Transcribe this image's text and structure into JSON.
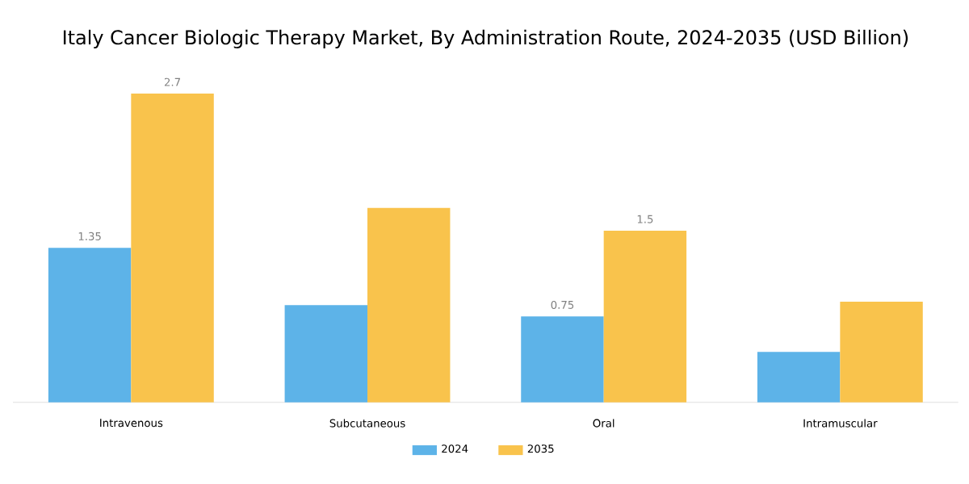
{
  "chart_data": {
    "type": "bar",
    "title": "Italy Cancer Biologic Therapy Market, By Administration Route, 2024-2035 (USD Billion)",
    "categories": [
      "Intravenous",
      "Subcutaneous",
      "Oral",
      "Intramuscular"
    ],
    "series": [
      {
        "name": "2024",
        "color": "#5db3e8",
        "values": [
          1.35,
          0.85,
          0.75,
          0.44
        ],
        "value_labels": [
          "1.35",
          null,
          "0.75",
          null
        ]
      },
      {
        "name": "2035",
        "color": "#f9c34c",
        "values": [
          2.7,
          1.7,
          1.5,
          0.88
        ],
        "value_labels": [
          "2.7",
          null,
          "1.5",
          null
        ]
      }
    ],
    "legend": "bottom"
  }
}
